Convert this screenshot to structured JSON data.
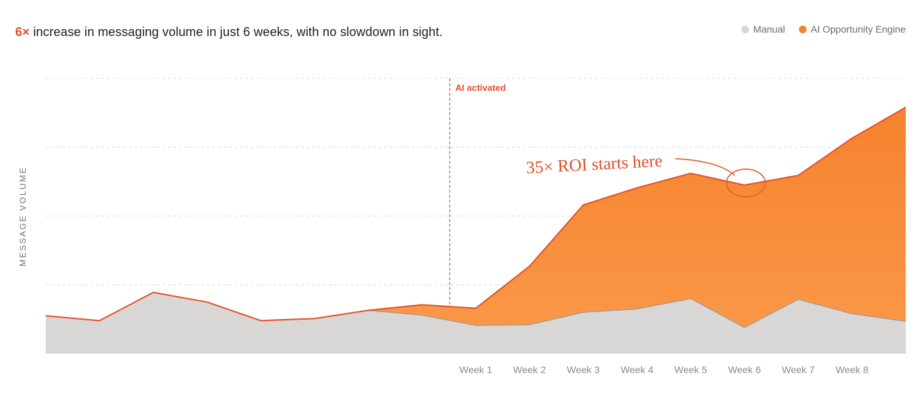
{
  "headline": {
    "accent": "6×",
    "text": " increase in messaging volume in just 6 weeks, with no slowdown in sight."
  },
  "legend": [
    {
      "label": "Manual",
      "color": "#d9d7d5"
    },
    {
      "label": "AI Opportunity Engine",
      "color": "#f5822e"
    }
  ],
  "colors": {
    "manual_fill": "#d9d7d5",
    "manual_line": "#9a9896",
    "ai_fill_top": "#f5822e",
    "ai_fill_bottom": "#fb9a4a",
    "ai_line": "#e2502a",
    "grid": "#dcdcdc",
    "marker": "#e2502a"
  },
  "chart_data": {
    "type": "area",
    "title": "",
    "ylabel": "MESSAGE VOLUME",
    "xlabel": "",
    "grid": true,
    "legend_position": "top-right",
    "x_tick_labels": [
      "",
      "",
      "",
      "",
      "",
      "",
      "",
      "",
      "Week 1",
      "Week 2",
      "Week 3",
      "Week 4",
      "Week 5",
      "Week 6",
      "Week 7",
      "Week 8",
      ""
    ],
    "ylim": [
      0,
      4
    ],
    "series": [
      {
        "name": "Manual",
        "values": [
          0.55,
          0.48,
          0.89,
          0.75,
          0.48,
          0.51,
          0.63,
          0.56,
          0.41,
          0.42,
          0.6,
          0.65,
          0.8,
          0.38,
          0.79,
          0.58,
          0.47
        ]
      },
      {
        "name": "AI Opportunity Engine",
        "values": [
          0.55,
          0.48,
          0.89,
          0.75,
          0.48,
          0.51,
          0.63,
          0.71,
          0.66,
          1.27,
          2.16,
          2.41,
          2.62,
          2.45,
          2.59,
          3.13,
          3.58
        ]
      }
    ],
    "annotations": [
      {
        "type": "vertical-line",
        "at_index": 7,
        "label": "AI activated"
      },
      {
        "type": "callout",
        "at_index": 13,
        "label": "35× ROI starts here"
      }
    ]
  }
}
